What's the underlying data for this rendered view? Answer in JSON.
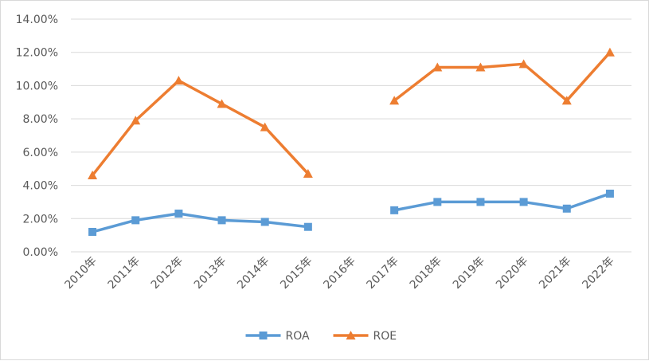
{
  "chart_data": {
    "type": "line",
    "categories": [
      "2010年",
      "2011年",
      "2012年",
      "2013年",
      "2014年",
      "2015年",
      "2016年",
      "2017年",
      "2018年",
      "2019年",
      "2020年",
      "2021年",
      "2022年"
    ],
    "series": [
      {
        "name": "ROA",
        "color": "#5b9bd5",
        "marker": "square",
        "values": [
          0.012,
          0.019,
          0.023,
          0.019,
          0.018,
          0.015,
          null,
          0.025,
          0.03,
          0.03,
          0.03,
          0.026,
          0.035
        ]
      },
      {
        "name": "ROE",
        "color": "#ed7d31",
        "marker": "triangle",
        "values": [
          0.046,
          0.079,
          0.103,
          0.089,
          0.075,
          0.047,
          null,
          0.091,
          0.111,
          0.111,
          0.113,
          0.091,
          0.12
        ]
      }
    ],
    "ylim": [
      0,
      0.14
    ],
    "yticks": [
      "0.00%",
      "2.00%",
      "4.00%",
      "6.00%",
      "8.00%",
      "10.00%",
      "12.00%",
      "14.00%"
    ],
    "grid": true,
    "legend": "bottom",
    "title": "",
    "xlabel": "",
    "ylabel": ""
  }
}
